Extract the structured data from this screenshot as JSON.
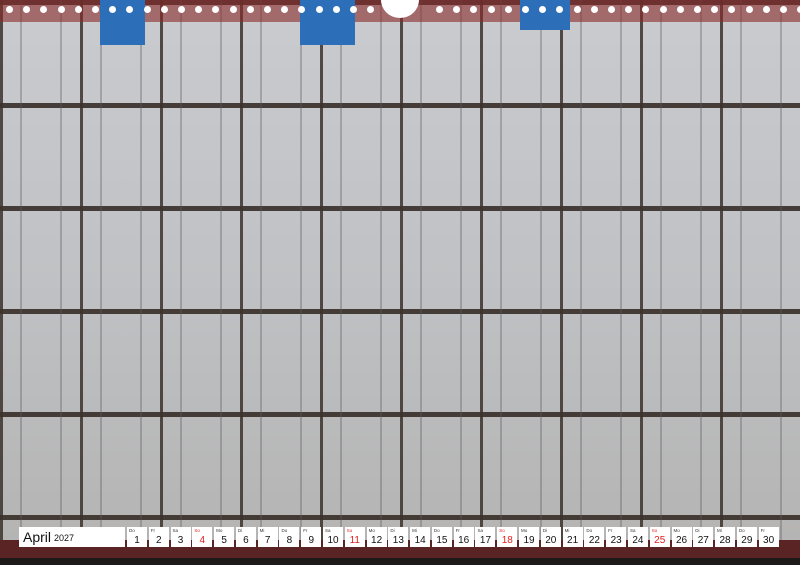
{
  "calendar": {
    "month": "April",
    "year": "2027",
    "sunday_color": "#e31c1c",
    "days": [
      {
        "wd": "Do",
        "n": "1"
      },
      {
        "wd": "Fr",
        "n": "2"
      },
      {
        "wd": "Sa",
        "n": "3"
      },
      {
        "wd": "So",
        "n": "4"
      },
      {
        "wd": "Mo",
        "n": "5"
      },
      {
        "wd": "Di",
        "n": "6"
      },
      {
        "wd": "Mi",
        "n": "7"
      },
      {
        "wd": "Do",
        "n": "8"
      },
      {
        "wd": "Fr",
        "n": "9"
      },
      {
        "wd": "Sa",
        "n": "10"
      },
      {
        "wd": "So",
        "n": "11"
      },
      {
        "wd": "Mo",
        "n": "12"
      },
      {
        "wd": "Di",
        "n": "13"
      },
      {
        "wd": "Mi",
        "n": "14"
      },
      {
        "wd": "Do",
        "n": "15"
      },
      {
        "wd": "Fr",
        "n": "16"
      },
      {
        "wd": "Sa",
        "n": "17"
      },
      {
        "wd": "So",
        "n": "18"
      },
      {
        "wd": "Mo",
        "n": "19"
      },
      {
        "wd": "Di",
        "n": "20"
      },
      {
        "wd": "Mi",
        "n": "21"
      },
      {
        "wd": "Do",
        "n": "22"
      },
      {
        "wd": "Fr",
        "n": "23"
      },
      {
        "wd": "Sa",
        "n": "24"
      },
      {
        "wd": "So",
        "n": "25"
      },
      {
        "wd": "Mo",
        "n": "26"
      },
      {
        "wd": "Di",
        "n": "27"
      },
      {
        "wd": "Mi",
        "n": "28"
      },
      {
        "wd": "Do",
        "n": "29"
      },
      {
        "wd": "Fr",
        "n": "30"
      }
    ]
  }
}
